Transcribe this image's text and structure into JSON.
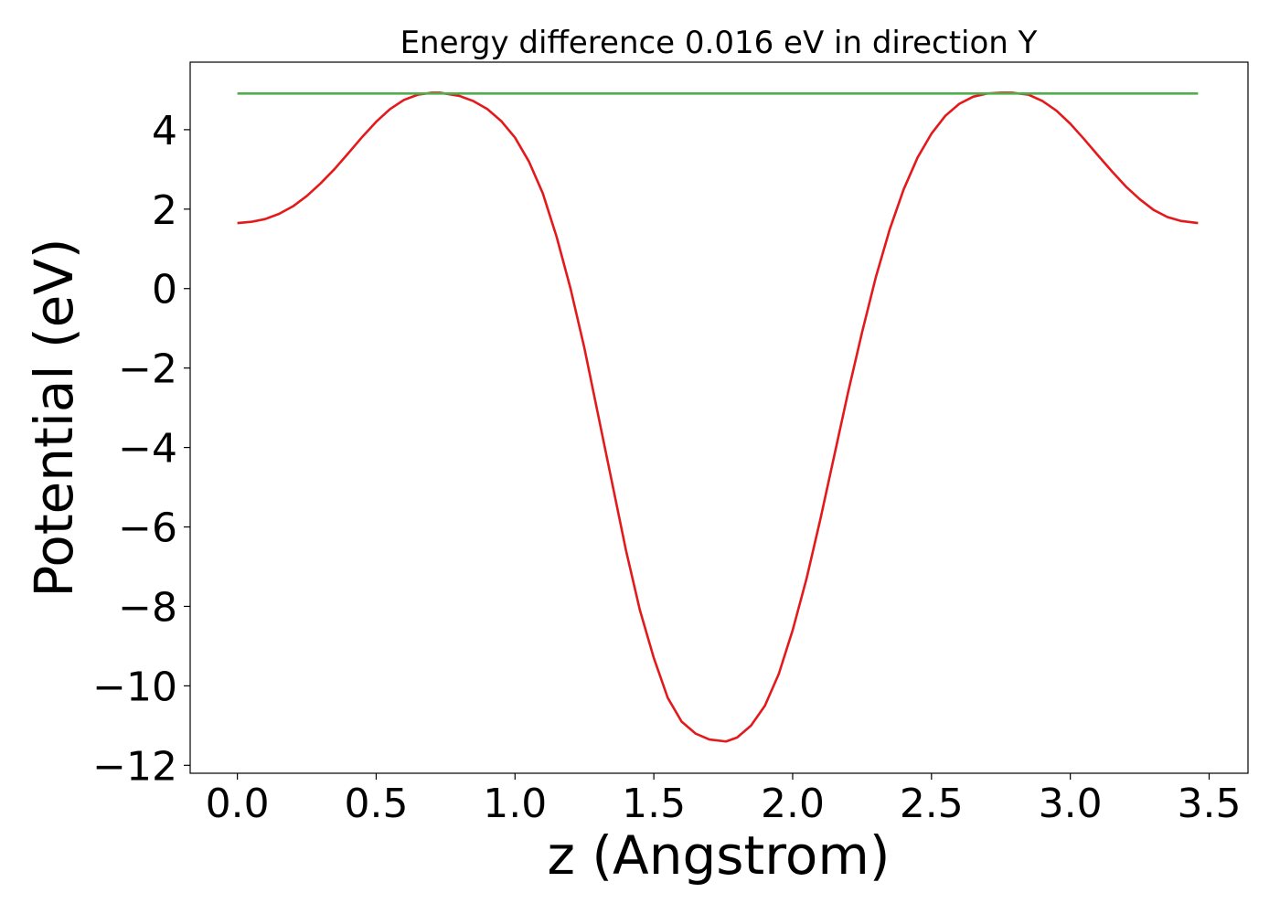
{
  "chart_data": {
    "type": "line",
    "title": "Energy difference 0.016 eV in direction Y",
    "xlabel": "z (Angstrom)",
    "ylabel": "Potential (eV)",
    "xlim": [
      -0.17,
      3.64
    ],
    "ylim": [
      -12.2,
      5.7
    ],
    "xticks": [
      {
        "value": 0.0,
        "label": "0.0"
      },
      {
        "value": 0.5,
        "label": "0.5"
      },
      {
        "value": 1.0,
        "label": "1.0"
      },
      {
        "value": 1.5,
        "label": "1.5"
      },
      {
        "value": 2.0,
        "label": "2.0"
      },
      {
        "value": 2.5,
        "label": "2.5"
      },
      {
        "value": 3.0,
        "label": "3.0"
      },
      {
        "value": 3.5,
        "label": "3.5"
      }
    ],
    "yticks": [
      {
        "value": 4,
        "label": "4"
      },
      {
        "value": 2,
        "label": "2"
      },
      {
        "value": 0,
        "label": "0"
      },
      {
        "value": -2,
        "label": "−2"
      },
      {
        "value": -4,
        "label": "−4"
      },
      {
        "value": -6,
        "label": "−6"
      },
      {
        "value": -8,
        "label": "−8"
      },
      {
        "value": -10,
        "label": "−10"
      },
      {
        "value": -12,
        "label": "−12"
      }
    ],
    "grid": false,
    "legend": "none",
    "series": [
      {
        "color": "#e31a1c",
        "x": [
          0.0,
          0.05,
          0.1,
          0.15,
          0.2,
          0.25,
          0.3,
          0.35,
          0.4,
          0.45,
          0.5,
          0.55,
          0.6,
          0.65,
          0.7,
          0.73,
          0.8,
          0.85,
          0.9,
          0.95,
          1.0,
          1.05,
          1.1,
          1.15,
          1.2,
          1.25,
          1.3,
          1.35,
          1.4,
          1.45,
          1.5,
          1.55,
          1.6,
          1.65,
          1.7,
          1.76,
          1.8,
          1.85,
          1.9,
          1.95,
          2.0,
          2.05,
          2.1,
          2.15,
          2.2,
          2.25,
          2.3,
          2.35,
          2.4,
          2.45,
          2.5,
          2.55,
          2.6,
          2.65,
          2.7,
          2.75,
          2.79,
          2.85,
          2.9,
          2.95,
          3.0,
          3.05,
          3.1,
          3.15,
          3.2,
          3.25,
          3.3,
          3.35,
          3.4,
          3.46
        ],
        "y": [
          1.65,
          1.68,
          1.75,
          1.88,
          2.07,
          2.33,
          2.65,
          3.01,
          3.41,
          3.82,
          4.2,
          4.52,
          4.75,
          4.88,
          4.93,
          4.93,
          4.85,
          4.72,
          4.52,
          4.22,
          3.8,
          3.2,
          2.4,
          1.3,
          0.0,
          -1.5,
          -3.2,
          -4.9,
          -6.6,
          -8.1,
          -9.3,
          -10.3,
          -10.9,
          -11.2,
          -11.35,
          -11.4,
          -11.3,
          -11.0,
          -10.5,
          -9.7,
          -8.6,
          -7.3,
          -5.8,
          -4.2,
          -2.6,
          -1.1,
          0.3,
          1.5,
          2.5,
          3.3,
          3.9,
          4.35,
          4.65,
          4.83,
          4.91,
          4.93,
          4.93,
          4.88,
          4.72,
          4.48,
          4.15,
          3.76,
          3.35,
          2.95,
          2.57,
          2.25,
          1.98,
          1.8,
          1.7,
          1.65
        ]
      },
      {
        "color": "#4daf4a",
        "x": [
          0.0,
          3.46
        ],
        "y": [
          4.91,
          4.91
        ]
      }
    ]
  }
}
